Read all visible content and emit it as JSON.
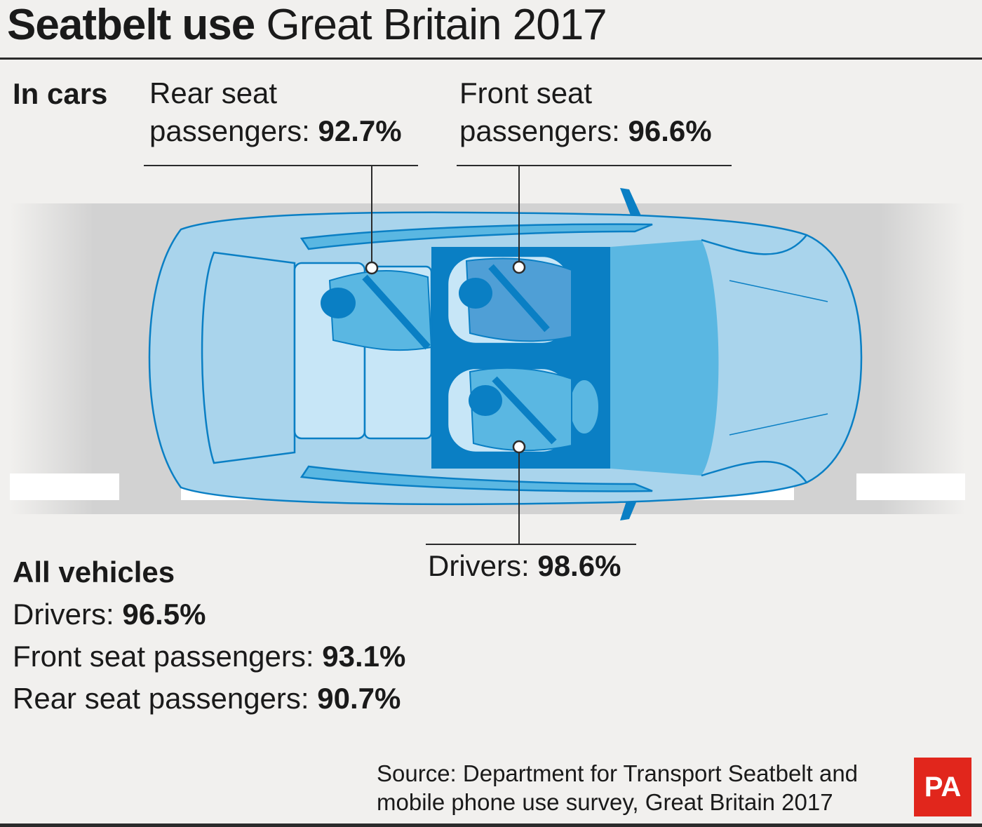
{
  "title": {
    "bold": "Seatbelt use",
    "light": "Great Britain 2017"
  },
  "in_cars": {
    "heading": "In cars",
    "rear": {
      "label_line1": "Rear seat",
      "label_line2": "passengers:",
      "value": "92.7%"
    },
    "front": {
      "label_line1": "Front seat",
      "label_line2": "passengers:",
      "value": "96.6%"
    },
    "driver": {
      "label": "Drivers:",
      "value": "98.6%"
    }
  },
  "all_vehicles": {
    "heading": "All vehicles",
    "rows": [
      {
        "label": "Drivers:",
        "value": "96.5%"
      },
      {
        "label": "Front seat passengers:",
        "value": "93.1%"
      },
      {
        "label": "Rear seat passengers:",
        "value": "90.7%"
      }
    ]
  },
  "source": {
    "line1": "Source: Department for Transport Seatbelt and",
    "line2": "mobile phone use survey, Great Britain 2017"
  },
  "logo": "PA",
  "colors": {
    "background": "#f1f0ee",
    "car_light": "#a9d4ec",
    "car_mid": "#5ab7e2",
    "car_dark": "#0a7fc4",
    "pa_red": "#e1261c"
  }
}
